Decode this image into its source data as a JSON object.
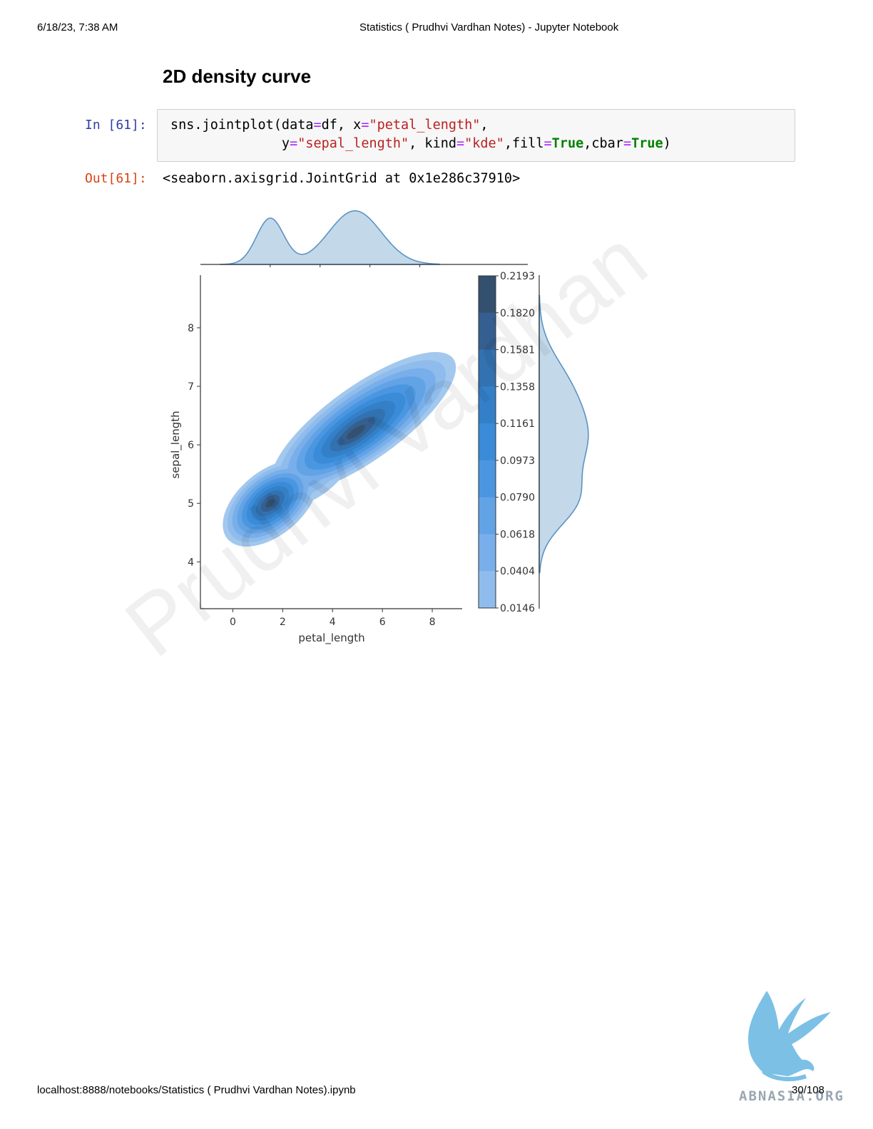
{
  "header": {
    "datetime": "6/18/23, 7:38 AM",
    "title": "Statistics ( Prudhvi Vardhan Notes) - Jupyter Notebook"
  },
  "section_title": "2D density curve",
  "cell": {
    "in_prompt": "In [61]:",
    "out_prompt": "Out[61]:",
    "code_line1": {
      "a": "sns.jointplot(data",
      "b": "=",
      "c": "df, x",
      "d": "=",
      "e": "\"petal_length\"",
      "f": ","
    },
    "code_line2": {
      "indent": "              y",
      "b": "=",
      "c": "\"sepal_length\"",
      "d": ", kind",
      "e": "=",
      "f": "\"kde\"",
      "g": ",fill",
      "h": "=",
      "i": "True",
      "j": ",cbar",
      "k": "=",
      "l": "True",
      "m": ")"
    },
    "output": "<seaborn.axisgrid.JointGrid at 0x1e286c37910>"
  },
  "chart_data": {
    "type": "kde-joint",
    "xlabel": "petal_length",
    "ylabel": "sepal_length",
    "x_ticks": [
      0,
      2,
      4,
      6,
      8
    ],
    "y_ticks": [
      4,
      5,
      6,
      7,
      8
    ],
    "xlim": [
      -1.3,
      9.2
    ],
    "ylim": [
      3.2,
      8.9
    ],
    "clusters": [
      {
        "x_center": 1.5,
        "y_center": 5.0
      },
      {
        "x_center": 4.9,
        "y_center": 6.2
      }
    ],
    "colorbar_ticks": [
      "0.2193",
      "0.1820",
      "0.1581",
      "0.1358",
      "0.1161",
      "0.0973",
      "0.0790",
      "0.0618",
      "0.0404",
      "0.0146"
    ],
    "colors": {
      "light": "#9cc4ec",
      "mid": "#3a8fdb",
      "dark": "#34506f",
      "marginal_fill": "#c3d9ea",
      "marginal_line": "#5b93c3"
    }
  },
  "watermark": "Prudhvi Vardhan",
  "footer": {
    "url": "localhost:8888/notebooks/Statistics ( Prudhvi Vardhan Notes).ipynb",
    "page": "30/108"
  },
  "logo_text": "ABNASIA.ORG"
}
